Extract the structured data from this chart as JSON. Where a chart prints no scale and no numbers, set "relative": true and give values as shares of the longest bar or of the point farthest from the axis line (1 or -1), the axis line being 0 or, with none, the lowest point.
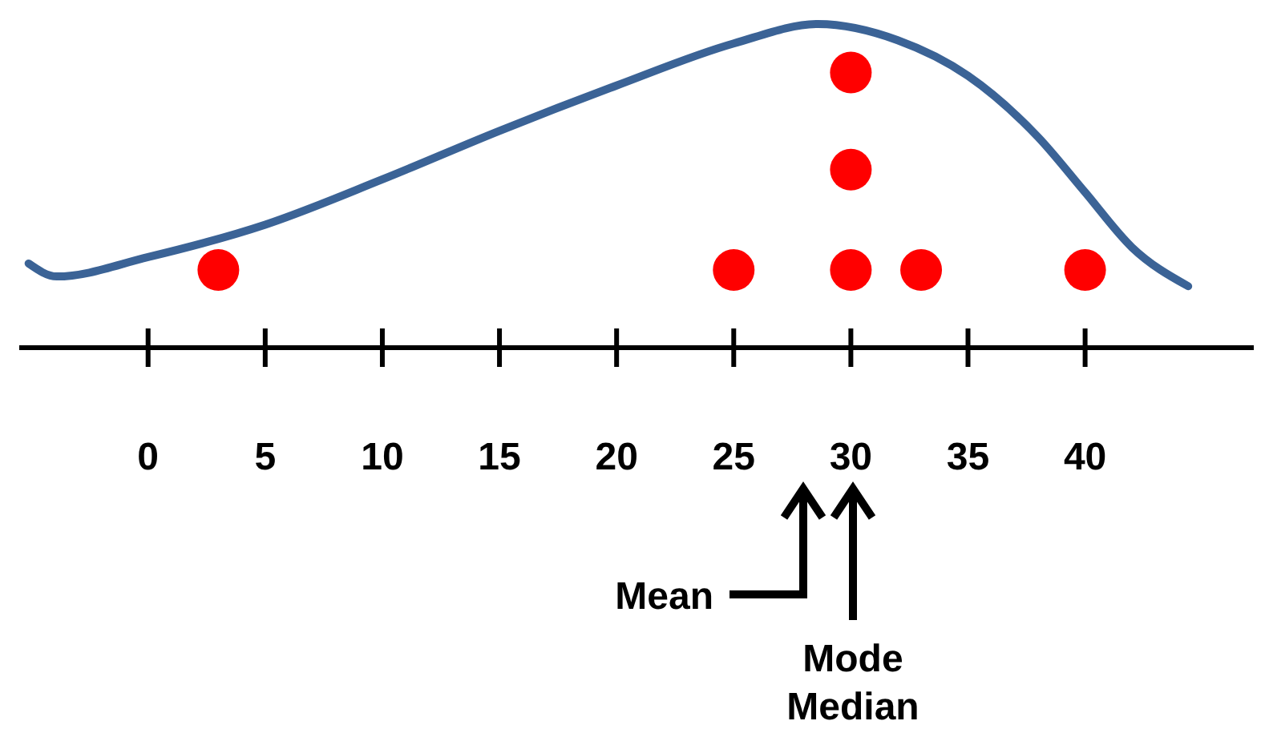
{
  "chart_data": {
    "type": "scatter",
    "relative": true,
    "xlim": [
      -5.5,
      47.2
    ],
    "xticks": [
      0,
      5,
      10,
      15,
      20,
      25,
      30,
      35,
      40
    ],
    "series": [
      {
        "type": "line",
        "color": "#3b6396",
        "x": [
          -5.1,
          -3.9,
          0,
          5,
          10,
          15,
          20,
          25,
          28.6,
          32,
          35,
          38,
          40,
          42,
          44.4
        ],
        "values": [
          0.26,
          0.22,
          0.28,
          0.38,
          0.52,
          0.67,
          0.81,
          0.94,
          1,
          0.95,
          0.84,
          0.65,
          0.48,
          0.31,
          0.19
        ]
      },
      {
        "color": "#ff0000",
        "x": [
          3,
          25,
          30,
          30,
          30,
          33,
          40
        ],
        "values": [
          0.24,
          0.24,
          0.24,
          0.55,
          0.85,
          0.24,
          0.24
        ]
      }
    ],
    "annotations": [
      "Mean",
      "Mode",
      "Median"
    ]
  }
}
